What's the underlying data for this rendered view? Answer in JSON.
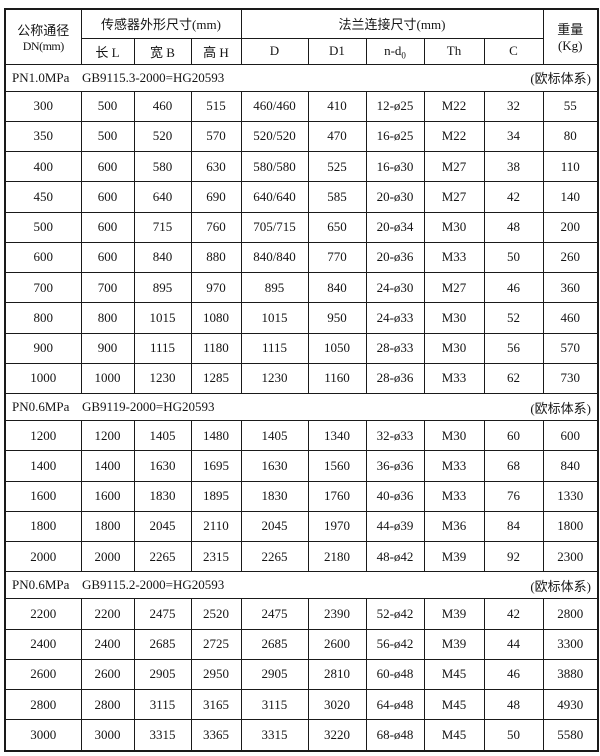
{
  "colors": {
    "background": "#ffffff",
    "border": "#1a1a1a",
    "text": "#141414"
  },
  "table": {
    "header": {
      "col_dn_line1": "公称通径",
      "col_dn_line2": "DN(mm)",
      "group_sensor": "传感器外形尺寸(mm)",
      "sensor_cols": [
        "长 L",
        "宽 B",
        "高 H"
      ],
      "group_flange": "法兰连接尺寸(mm)",
      "flange_cols": [
        "D",
        "D1",
        "n-d",
        "Th",
        "C"
      ],
      "nd_sub": "0",
      "col_weight_line1": "重量",
      "col_weight_line2": "(Kg)"
    },
    "sections": [
      {
        "pressure": "PN1.0MPa",
        "standard": "GB9115.3-2000=HG20593",
        "system": "(欧标体系)",
        "rows": [
          [
            "300",
            "500",
            "460",
            "515",
            "460/460",
            "410",
            "12-ø25",
            "M22",
            "32",
            "55"
          ],
          [
            "350",
            "500",
            "520",
            "570",
            "520/520",
            "470",
            "16-ø25",
            "M22",
            "34",
            "80"
          ],
          [
            "400",
            "600",
            "580",
            "630",
            "580/580",
            "525",
            "16-ø30",
            "M27",
            "38",
            "110"
          ],
          [
            "450",
            "600",
            "640",
            "690",
            "640/640",
            "585",
            "20-ø30",
            "M27",
            "42",
            "140"
          ],
          [
            "500",
            "600",
            "715",
            "760",
            "705/715",
            "650",
            "20-ø34",
            "M30",
            "48",
            "200"
          ],
          [
            "600",
            "600",
            "840",
            "880",
            "840/840",
            "770",
            "20-ø36",
            "M33",
            "50",
            "260"
          ],
          [
            "700",
            "700",
            "895",
            "970",
            "895",
            "840",
            "24-ø30",
            "M27",
            "46",
            "360"
          ],
          [
            "800",
            "800",
            "1015",
            "1080",
            "1015",
            "950",
            "24-ø33",
            "M30",
            "52",
            "460"
          ],
          [
            "900",
            "900",
            "1115",
            "1180",
            "1115",
            "1050",
            "28-ø33",
            "M30",
            "56",
            "570"
          ],
          [
            "1000",
            "1000",
            "1230",
            "1285",
            "1230",
            "1160",
            "28-ø36",
            "M33",
            "62",
            "730"
          ]
        ]
      },
      {
        "pressure": "PN0.6MPa",
        "standard": "GB9119-2000=HG20593",
        "system": "(欧标体系)",
        "rows": [
          [
            "1200",
            "1200",
            "1405",
            "1480",
            "1405",
            "1340",
            "32-ø33",
            "M30",
            "60",
            "600"
          ],
          [
            "1400",
            "1400",
            "1630",
            "1695",
            "1630",
            "1560",
            "36-ø36",
            "M33",
            "68",
            "840"
          ],
          [
            "1600",
            "1600",
            "1830",
            "1895",
            "1830",
            "1760",
            "40-ø36",
            "M33",
            "76",
            "1330"
          ],
          [
            "1800",
            "1800",
            "2045",
            "2110",
            "2045",
            "1970",
            "44-ø39",
            "M36",
            "84",
            "1800"
          ],
          [
            "2000",
            "2000",
            "2265",
            "2315",
            "2265",
            "2180",
            "48-ø42",
            "M39",
            "92",
            "2300"
          ]
        ]
      },
      {
        "pressure": "PN0.6MPa",
        "standard": "GB9115.2-2000=HG20593",
        "system": "(欧标体系)",
        "rows": [
          [
            "2200",
            "2200",
            "2475",
            "2520",
            "2475",
            "2390",
            "52-ø42",
            "M39",
            "42",
            "2800"
          ],
          [
            "2400",
            "2400",
            "2685",
            "2725",
            "2685",
            "2600",
            "56-ø42",
            "M39",
            "44",
            "3300"
          ],
          [
            "2600",
            "2600",
            "2905",
            "2950",
            "2905",
            "2810",
            "60-ø48",
            "M45",
            "46",
            "3880"
          ],
          [
            "2800",
            "2800",
            "3115",
            "3165",
            "3115",
            "3020",
            "64-ø48",
            "M45",
            "48",
            "4930"
          ],
          [
            "3000",
            "3000",
            "3315",
            "3365",
            "3315",
            "3220",
            "68-ø48",
            "M45",
            "50",
            "5580"
          ]
        ]
      }
    ]
  }
}
